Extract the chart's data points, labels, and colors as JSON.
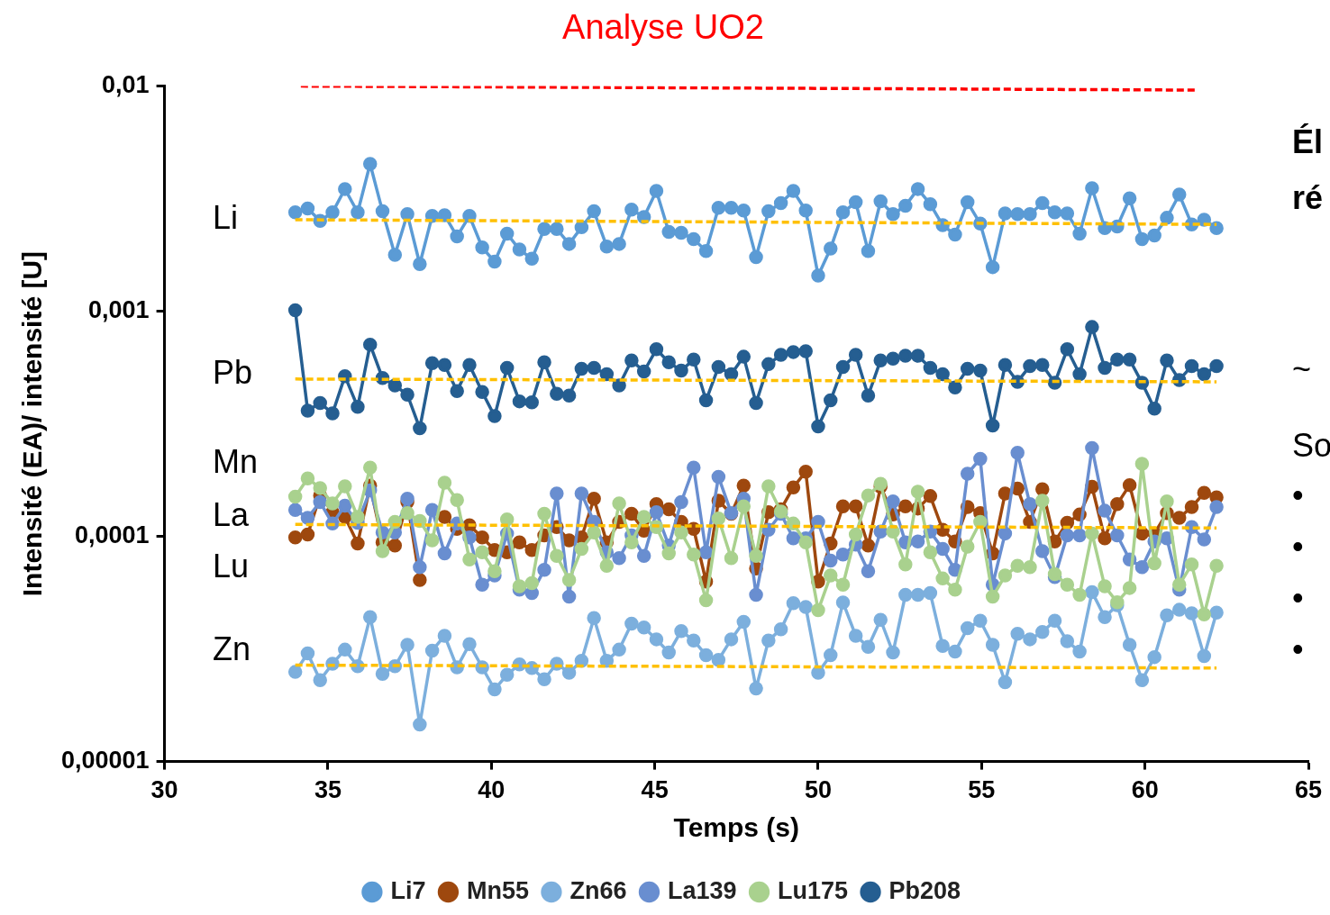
{
  "chart_data": {
    "type": "line",
    "title": "Analyse UO2",
    "xlabel": "Temps (s)",
    "ylabel": "Intensité (EA)/ intensité [U]",
    "x": [
      34.0,
      34.38,
      34.76,
      35.14,
      35.52,
      35.91,
      36.29,
      36.67,
      37.05,
      37.43,
      37.81,
      38.19,
      38.57,
      38.95,
      39.33,
      39.72,
      40.1,
      40.48,
      40.86,
      41.24,
      41.62,
      42.0,
      42.38,
      42.76,
      43.14,
      43.53,
      43.91,
      44.29,
      44.67,
      45.05,
      45.43,
      45.81,
      46.19,
      46.57,
      46.95,
      47.34,
      47.72,
      48.1,
      48.48,
      48.86,
      49.24,
      49.62,
      50.0,
      50.38,
      50.76,
      51.15,
      51.53,
      51.91,
      52.29,
      52.67,
      53.05,
      53.43,
      53.81,
      54.19,
      54.57,
      54.96,
      55.34,
      55.72,
      56.1,
      56.48,
      56.86,
      57.24,
      57.62,
      58.0,
      58.38,
      58.77,
      59.15,
      59.53,
      59.91,
      60.29,
      60.67,
      61.05,
      61.43,
      61.81,
      62.19
    ],
    "series": [
      {
        "name": "Li7",
        "color": "#5b9bd5",
        "marker": "circle",
        "values": [
          0.00275,
          0.00286,
          0.00252,
          0.00275,
          0.00349,
          0.00275,
          0.00451,
          0.00278,
          0.00178,
          0.0027,
          0.00162,
          0.00265,
          0.00267,
          0.00215,
          0.00265,
          0.00192,
          0.00166,
          0.00221,
          0.00188,
          0.00171,
          0.00232,
          0.00232,
          0.00199,
          0.00236,
          0.00278,
          0.00194,
          0.00199,
          0.00283,
          0.00262,
          0.00342,
          0.00225,
          0.00223,
          0.00209,
          0.00185,
          0.00288,
          0.00288,
          0.0028,
          0.00174,
          0.00278,
          0.00302,
          0.00342,
          0.0028,
          0.00144,
          0.0019,
          0.00275,
          0.00305,
          0.00185,
          0.00308,
          0.0027,
          0.00294,
          0.00349,
          0.00299,
          0.00241,
          0.00219,
          0.00305,
          0.00245,
          0.00157,
          0.00272,
          0.0027,
          0.0027,
          0.00302,
          0.00275,
          0.00272,
          0.00221,
          0.00352,
          0.00234,
          0.00238,
          0.00317,
          0.00209,
          0.00217,
          0.0026,
          0.0033,
          0.00243,
          0.00255,
          0.00234
        ]
      },
      {
        "name": "Mn55",
        "color": "#9e480e",
        "marker": "circle",
        "values": [
          9.9e-05,
          0.000102,
          0.000152,
          0.000128,
          0.000122,
          9.3e-05,
          0.000168,
          9.4e-05,
          9.1e-05,
          0.000142,
          6.4e-05,
          null,
          0.000122,
          0.000108,
          0.000112,
          9.9e-05,
          8.7e-05,
          8.5e-05,
          9.4e-05,
          8.7e-05,
          0.000101,
          0.00011,
          9.6e-05,
          9.9e-05,
          0.000147,
          9.4e-05,
          0.000116,
          0.000126,
          0.000106,
          0.000139,
          0.000132,
          0.000116,
          0.000108,
          6.3e-05,
          0.000144,
          0.000126,
          0.000168,
          7.2e-05,
          0.000128,
          0.000132,
          0.000165,
          0.000194,
          6.3e-05,
          9.3e-05,
          0.000136,
          0.000136,
          9.1e-05,
          0.000166,
          0.000125,
          0.000136,
          0.000133,
          0.000151,
          0.000107,
          9.5e-05,
          0.000135,
          0.000127,
          8.4e-05,
          0.000155,
          0.000163,
          0.000116,
          0.000162,
          9.5e-05,
          0.000115,
          0.000125,
          0.000166,
          9.8e-05,
          0.000139,
          0.000169,
          0.000103,
          0.000103,
          0.000127,
          0.000121,
          0.000135,
          0.000156,
          0.000149
        ]
      },
      {
        "name": "Zn66",
        "color": "#7cafdd",
        "marker": "circle",
        "values": [
          2.5e-05,
          3.02e-05,
          2.3e-05,
          2.72e-05,
          3.14e-05,
          2.65e-05,
          4.38e-05,
          2.45e-05,
          2.65e-05,
          3.3e-05,
          1.46e-05,
          3.11e-05,
          3.62e-05,
          2.62e-05,
          3.32e-05,
          2.62e-05,
          2.09e-05,
          2.43e-05,
          2.7e-05,
          2.6e-05,
          2.32e-05,
          2.72e-05,
          2.48e-05,
          2.8e-05,
          4.34e-05,
          2.8e-05,
          3.14e-05,
          4.1e-05,
          3.94e-05,
          3.49e-05,
          3.05e-05,
          3.8e-05,
          3.45e-05,
          2.97e-05,
          2.83e-05,
          3.49e-05,
          4.17e-05,
          2.11e-05,
          3.45e-05,
          3.87e-05,
          5.05e-05,
          4.86e-05,
          2.48e-05,
          2.97e-05,
          5.09e-05,
          3.62e-05,
          3.23e-05,
          4.26e-05,
          3.05e-05,
          5.5e-05,
          5.5e-05,
          5.6e-05,
          3.26e-05,
          3.08e-05,
          3.91e-05,
          4.22e-05,
          3.3e-05,
          2.25e-05,
          3.69e-05,
          3.49e-05,
          3.76e-05,
          4.22e-05,
          3.42e-05,
          3.08e-05,
          5.66e-05,
          4.38e-05,
          4.95e-05,
          3.3e-05,
          2.3e-05,
          2.91e-05,
          4.46e-05,
          4.72e-05,
          4.55e-05,
          2.94e-05,
          4.59e-05
        ]
      },
      {
        "name": "La139",
        "color": "#698ed0",
        "marker": "circle",
        "values": [
          0.000131,
          0.000121,
          0.000142,
          0.000114,
          0.000137,
          0.000115,
          0.00016,
          0.000104,
          0.000104,
          0.000147,
          7.3e-05,
          0.000131,
          8.4e-05,
          0.000114,
          9.9e-05,
          6.1e-05,
          6.7e-05,
          0.000103,
          5.8e-05,
          5.6e-05,
          7.1e-05,
          0.000155,
          5.4e-05,
          0.000155,
          0.000116,
          8.5e-05,
          8e-05,
          0.000101,
          8.2e-05,
          0.000128,
          9.1e-05,
          0.000142,
          0.000202,
          8.5e-05,
          0.000184,
          0.000127,
          0.000147,
          5.5e-05,
          0.000107,
          0.000126,
          9.8e-05,
          9.8e-05,
          0.000116,
          7.8e-05,
          8.3e-05,
          9.2e-05,
          7e-05,
          0.000105,
          0.000143,
          9.4e-05,
          9.5e-05,
          0.000105,
          8.8e-05,
          7.1e-05,
          0.00019,
          0.000221,
          6.1e-05,
          0.000103,
          0.000235,
          0.000139,
          8.6e-05,
          6.6e-05,
          0.000101,
          0.000101,
          0.000247,
          0.00013,
          0.000101,
          7.9e-05,
          7.3e-05,
          9.5e-05,
          9.8e-05,
          5.8e-05,
          0.00011,
          9.7e-05,
          0.000135
        ]
      },
      {
        "name": "Lu175",
        "color": "#a9d18e",
        "marker": "circle",
        "values": [
          0.00015,
          0.000181,
          0.000164,
          0.00014,
          0.000167,
          0.000122,
          0.000202,
          8.6e-05,
          0.000116,
          0.000127,
          0.000117,
          9.6e-05,
          0.000173,
          0.000145,
          7.9e-05,
          8.5e-05,
          7e-05,
          0.000119,
          6e-05,
          6.2e-05,
          0.000126,
          8.2e-05,
          6.4e-05,
          8.8e-05,
          0.000104,
          7.4e-05,
          0.00014,
          9.4e-05,
          0.000122,
          0.00011,
          8.4e-05,
          0.000104,
          8.3e-05,
          5.2e-05,
          0.00012,
          8e-05,
          0.000136,
          8.2e-05,
          0.000167,
          0.000129,
          0.000114,
          9.4e-05,
          4.7e-05,
          6.7e-05,
          6.1e-05,
          0.000102,
          0.000152,
          0.000171,
          0.000105,
          7.5e-05,
          0.000158,
          8.5e-05,
          6.5e-05,
          5.8e-05,
          9e-05,
          0.000116,
          5.4e-05,
          6.7e-05,
          7.4e-05,
          7.3e-05,
          0.000144,
          6.8e-05,
          6.1e-05,
          5.5e-05,
          0.000103,
          6e-05,
          5.1e-05,
          5.9e-05,
          0.00021,
          7.6e-05,
          0.000143,
          6.1e-05,
          7.5e-05,
          4.5e-05,
          7.4e-05
        ]
      },
      {
        "name": "Pb208",
        "color": "#255e91",
        "marker": "circle",
        "values": [
          0.00101,
          0.000362,
          0.000391,
          0.000352,
          0.000515,
          0.000376,
          0.000711,
          0.000505,
          0.000468,
          0.000426,
          0.000302,
          0.000588,
          0.000577,
          0.000442,
          0.000577,
          0.000438,
          0.000342,
          0.00056,
          0.000398,
          0.000394,
          0.000593,
          0.00043,
          0.000422,
          0.000555,
          0.00056,
          0.000525,
          0.000468,
          0.000605,
          0.00054,
          0.000678,
          0.000593,
          0.000545,
          0.00061,
          0.000402,
          0.000566,
          0.000525,
          0.000628,
          0.000391,
          0.000582,
          0.00064,
          0.000659,
          0.000665,
          0.000308,
          0.000402,
          0.000566,
          0.00064,
          0.000422,
          0.000605,
          0.000616,
          0.000634,
          0.000634,
          0.00056,
          0.000525,
          0.000459,
          0.000555,
          0.000545,
          0.000311,
          0.000577,
          0.000486,
          0.000571,
          0.000577,
          0.000481,
          0.000678,
          0.000525,
          0.000851,
          0.00056,
          0.00061,
          0.00061,
          0.000481,
          0.000369,
          0.000605,
          0.000495,
          0.000571,
          0.000525,
          0.000571
        ]
      },
      {
        "color": "#ffc000",
        "marker": "none",
        "line_style": "dashed",
        "x": [
          34.0,
          62.19
        ],
        "values": [
          0.00255,
          0.00243
        ]
      },
      {
        "color": "#ffc000",
        "marker": "none",
        "line_style": "dashed",
        "x": [
          34.0,
          62.19
        ],
        "values": [
          0.0005,
          0.000486
        ]
      },
      {
        "color": "#ffc000",
        "marker": "none",
        "line_style": "dashed",
        "x": [
          34.0,
          62.19
        ],
        "values": [
          0.000113,
          0.000109
        ]
      },
      {
        "color": "#ffc000",
        "marker": "none",
        "line_style": "dashed",
        "x": [
          34.0,
          62.19
        ],
        "values": [
          2.68e-05,
          2.6e-05
        ]
      },
      {
        "color": "#ff0000",
        "marker": "none",
        "line_style": "dashed",
        "x": [
          34.17,
          61.53
        ],
        "values": [
          0.01,
          0.0096
        ]
      }
    ],
    "xlim": [
      30,
      65
    ],
    "xticks": [
      30,
      35,
      40,
      45,
      50,
      55,
      60,
      65
    ],
    "ylim": [
      1e-05,
      0.01
    ],
    "yticks": [
      {
        "value": 1e-05,
        "label": "0,00001"
      },
      {
        "value": 0.0001,
        "label": "0,0001"
      },
      {
        "value": 0.001,
        "label": "0,001"
      },
      {
        "value": 0.01,
        "label": "0,01"
      }
    ],
    "log": "y",
    "grid": false,
    "legend": "bottom",
    "annotations": [
      "Li",
      "Pb",
      "Mn",
      "La",
      "Lu",
      "Zn",
      "Él",
      "ré",
      "~",
      "So",
      "•",
      "•",
      "•",
      "•"
    ]
  }
}
